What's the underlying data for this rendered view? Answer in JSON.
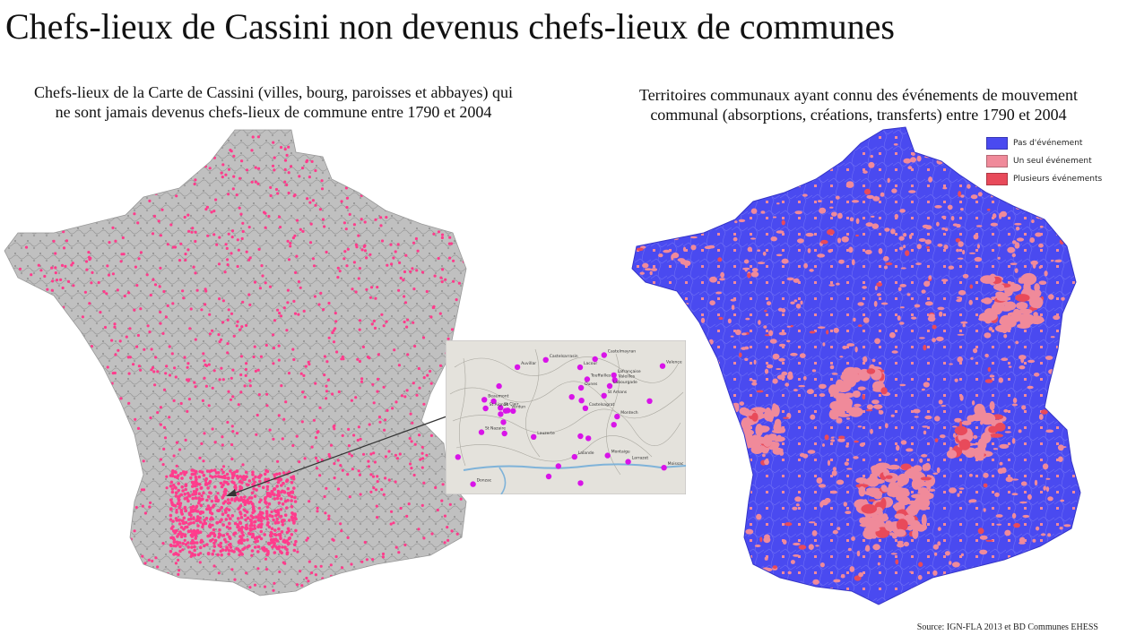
{
  "title": "Chefs-lieux de Cassini non devenus chefs-lieux de communes",
  "left_panel": {
    "subtitle_line1": "Chefs-lieux de la Carte de Cassini (villes, bourg, paroisses et abbayes) qui",
    "subtitle_line2": "ne sont jamais devenus chefs-lieux de commune entre 1790 et 2004"
  },
  "right_panel": {
    "subtitle_line1": "Territoires communaux ayant connu des événements de mouvement",
    "subtitle_line2": "communal (absorptions, créations, transferts) entre 1790 et 2004"
  },
  "legend": {
    "items": [
      {
        "label": "Pas d'événement",
        "color": "#4a4af0"
      },
      {
        "label": "Un seul événement",
        "color": "#f08a9a"
      },
      {
        "label": "Plusieurs événements",
        "color": "#e84a5a"
      }
    ]
  },
  "inset": {
    "labels": [
      "Dunes",
      "Castelsagrat",
      "Lauzerte",
      "St Amans",
      "Montaigu",
      "Touffailles",
      "St Nazaire",
      "Lacour",
      "Valeilles",
      "St Clair",
      "Lalande",
      "Donzac",
      "Auvillar",
      "Valence",
      "Moissac",
      "Castelmayran",
      "St Aignan",
      "Lafrançaise",
      "Montech",
      "Castelsarrasin",
      "Labourgade",
      "Larrazet",
      "Beaumont",
      "Verdun"
    ]
  },
  "colors": {
    "dot_pink": "#ff3c8c",
    "dot_purple": "#d814e8",
    "map_gray": "#9a9a9a",
    "commune_blue": "#4a4af0",
    "commune_pink": "#f08a9a"
  },
  "source": "Source: IGN-FLA 2013 et BD Communes EHESS"
}
